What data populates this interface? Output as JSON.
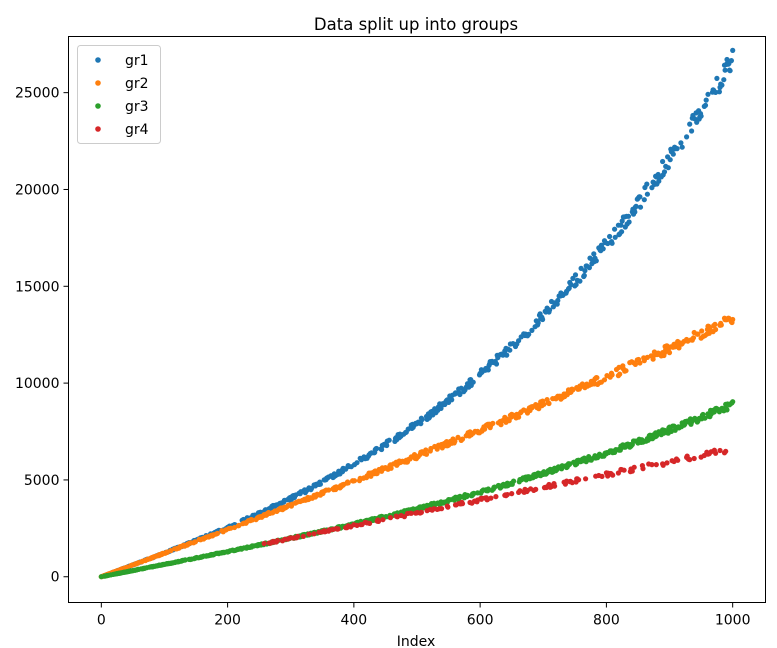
{
  "chart_data": {
    "type": "scatter",
    "title": "Data split up into groups",
    "xlabel": "Index",
    "ylabel": "",
    "xlim": [
      -52,
      1052
    ],
    "ylim": [
      -1330,
      27900
    ],
    "xticks": [
      0,
      200,
      400,
      600,
      800,
      1000
    ],
    "yticks": [
      0,
      5000,
      10000,
      15000,
      20000,
      25000
    ],
    "grid": false,
    "legend_position": "top-left",
    "series": [
      {
        "name": "gr1",
        "color": "#1f77b4",
        "model": {
          "a": 12.2,
          "b": 1.45e-05,
          "x_start": 0,
          "x_end": 1000,
          "density": 0.5
        }
      },
      {
        "name": "gr2",
        "color": "#ff7f0e",
        "model": {
          "a": 12.2,
          "b": 1.1e-06,
          "x_start": 0,
          "x_end": 1000,
          "density": 0.5
        }
      },
      {
        "name": "gr3",
        "color": "#2ca02c",
        "model": {
          "a": 6.4,
          "b": 2.5e-06,
          "x_start": 0,
          "x_end": 1000,
          "density": 0.6
        }
      },
      {
        "name": "gr4",
        "color": "#d62728",
        "model": {
          "a": 6.6,
          "b": 0.0,
          "x_start": 250,
          "x_end": 990,
          "density": 0.22
        }
      }
    ]
  }
}
